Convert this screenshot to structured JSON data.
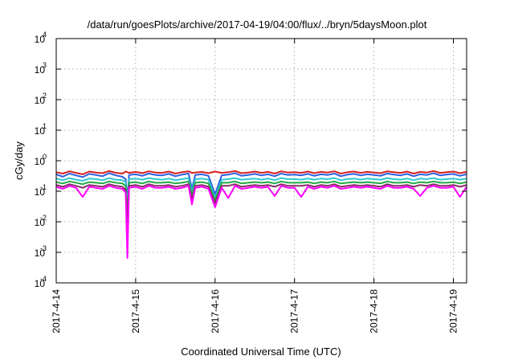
{
  "chart_data": {
    "type": "line",
    "title": "/data/run/goesPlots/archive/2017-04-19/04:00/flux/../bryn/5daysMoon.plot",
    "xlabel": "Coordinated Universal Time (UTC)",
    "ylabel": "cGy/day",
    "x_scale": "time",
    "y_scale": "log",
    "xlim": [
      "2017-04-14T00:00",
      "2017-04-19T04:00"
    ],
    "ylim": [
      0.0001,
      10000
    ],
    "grid": true,
    "legend": "none",
    "x_ticks": [
      {
        "label": "2017-4-14",
        "value": "2017-04-14T00:00"
      },
      {
        "label": "2017-4-15",
        "value": "2017-04-15T00:00"
      },
      {
        "label": "2017-4-16",
        "value": "2017-04-16T00:00"
      },
      {
        "label": "2017-4-17",
        "value": "2017-04-17T00:00"
      },
      {
        "label": "2017-4-18",
        "value": "2017-04-18T00:00"
      },
      {
        "label": "2017-4-19",
        "value": "2017-04-19T00:00"
      }
    ],
    "y_ticks": [
      {
        "base": "10",
        "exp": "-4",
        "value": 0.0001
      },
      {
        "base": "10",
        "exp": "-3",
        "value": 0.001
      },
      {
        "base": "10",
        "exp": "-2",
        "value": 0.01
      },
      {
        "base": "10",
        "exp": "-1",
        "value": 0.1
      },
      {
        "base": "10",
        "exp": "0",
        "value": 1
      },
      {
        "base": "10",
        "exp": "1",
        "value": 10
      },
      {
        "base": "10",
        "exp": "2",
        "value": 100
      },
      {
        "base": "10",
        "exp": "3",
        "value": 1000
      },
      {
        "base": "10",
        "exp": "4",
        "value": 10000
      }
    ],
    "x": [
      "2017-04-14T00:00",
      "2017-04-14T02:00",
      "2017-04-14T04:00",
      "2017-04-14T06:00",
      "2017-04-14T08:00",
      "2017-04-14T10:00",
      "2017-04-14T12:00",
      "2017-04-14T14:00",
      "2017-04-14T16:00",
      "2017-04-14T18:00",
      "2017-04-14T20:00",
      "2017-04-14T21:00",
      "2017-04-14T21:30",
      "2017-04-14T22:00",
      "2017-04-15T00:00",
      "2017-04-15T02:00",
      "2017-04-15T04:00",
      "2017-04-15T06:00",
      "2017-04-15T08:00",
      "2017-04-15T10:00",
      "2017-04-15T12:00",
      "2017-04-15T14:00",
      "2017-04-15T16:00",
      "2017-04-15T17:00",
      "2017-04-15T18:00",
      "2017-04-15T20:00",
      "2017-04-15T22:00",
      "2017-04-16T00:00",
      "2017-04-16T02:00",
      "2017-04-16T04:00",
      "2017-04-16T06:00",
      "2017-04-16T08:00",
      "2017-04-16T10:00",
      "2017-04-16T12:00",
      "2017-04-16T14:00",
      "2017-04-16T16:00",
      "2017-04-16T18:00",
      "2017-04-16T20:00",
      "2017-04-16T22:00",
      "2017-04-17T00:00",
      "2017-04-17T02:00",
      "2017-04-17T04:00",
      "2017-04-17T06:00",
      "2017-04-17T08:00",
      "2017-04-17T10:00",
      "2017-04-17T12:00",
      "2017-04-17T14:00",
      "2017-04-17T16:00",
      "2017-04-17T18:00",
      "2017-04-17T20:00",
      "2017-04-17T22:00",
      "2017-04-18T00:00",
      "2017-04-18T02:00",
      "2017-04-18T04:00",
      "2017-04-18T06:00",
      "2017-04-18T08:00",
      "2017-04-18T10:00",
      "2017-04-18T12:00",
      "2017-04-18T14:00",
      "2017-04-18T16:00",
      "2017-04-18T18:00",
      "2017-04-18T20:00",
      "2017-04-18T22:00",
      "2017-04-19T00:00",
      "2017-04-19T02:00",
      "2017-04-19T04:00"
    ],
    "series": [
      {
        "color": "#d62020",
        "values": [
          0.42,
          0.38,
          0.45,
          0.4,
          0.36,
          0.44,
          0.41,
          0.39,
          0.46,
          0.4,
          0.38,
          0.44,
          0.42,
          0.4,
          0.43,
          0.39,
          0.45,
          0.41,
          0.4,
          0.44,
          0.38,
          0.42,
          0.45,
          0.4,
          0.41,
          0.43,
          0.39,
          0.44,
          0.4,
          0.42,
          0.46,
          0.39,
          0.41,
          0.44,
          0.4,
          0.43,
          0.38,
          0.45,
          0.41,
          0.42,
          0.4,
          0.44,
          0.39,
          0.43,
          0.41,
          0.45,
          0.38,
          0.42,
          0.44,
          0.4,
          0.43,
          0.41,
          0.39,
          0.45,
          0.42,
          0.4,
          0.44,
          0.38,
          0.43,
          0.41,
          0.46,
          0.4,
          0.42,
          0.44,
          0.39,
          0.43
        ]
      },
      {
        "color": "#2d5fe0",
        "values": [
          0.36,
          0.3,
          0.38,
          0.33,
          0.29,
          0.37,
          0.34,
          0.31,
          0.39,
          0.33,
          0.3,
          0.25,
          0.05,
          0.34,
          0.36,
          0.32,
          0.38,
          0.34,
          0.33,
          0.37,
          0.31,
          0.35,
          0.38,
          0.12,
          0.34,
          0.36,
          0.32,
          0.08,
          0.33,
          0.35,
          0.39,
          0.32,
          0.34,
          0.37,
          0.33,
          0.36,
          0.31,
          0.38,
          0.34,
          0.35,
          0.33,
          0.37,
          0.32,
          0.36,
          0.34,
          0.38,
          0.31,
          0.35,
          0.37,
          0.33,
          0.36,
          0.34,
          0.32,
          0.38,
          0.35,
          0.33,
          0.37,
          0.31,
          0.36,
          0.34,
          0.39,
          0.33,
          0.35,
          0.37,
          0.32,
          0.36
        ]
      },
      {
        "color": "#2ec8d2",
        "values": [
          0.26,
          0.23,
          0.27,
          0.24,
          0.22,
          0.26,
          0.25,
          0.23,
          0.27,
          0.24,
          0.23,
          0.2,
          0.03,
          0.25,
          0.26,
          0.24,
          0.27,
          0.25,
          0.24,
          0.26,
          0.23,
          0.25,
          0.27,
          0.09,
          0.25,
          0.26,
          0.24,
          0.06,
          0.24,
          0.25,
          0.27,
          0.24,
          0.25,
          0.26,
          0.24,
          0.26,
          0.23,
          0.27,
          0.25,
          0.25,
          0.24,
          0.26,
          0.24,
          0.26,
          0.25,
          0.27,
          0.23,
          0.25,
          0.26,
          0.24,
          0.26,
          0.25,
          0.24,
          0.27,
          0.25,
          0.24,
          0.26,
          0.23,
          0.26,
          0.25,
          0.27,
          0.24,
          0.25,
          0.26,
          0.24,
          0.26
        ]
      },
      {
        "color": "#22aa44",
        "values": [
          0.2,
          0.18,
          0.21,
          0.19,
          0.17,
          0.2,
          0.19,
          0.18,
          0.21,
          0.19,
          0.18,
          0.15,
          0.02,
          0.19,
          0.2,
          0.18,
          0.21,
          0.19,
          0.19,
          0.2,
          0.18,
          0.19,
          0.21,
          0.07,
          0.19,
          0.2,
          0.18,
          0.05,
          0.19,
          0.19,
          0.21,
          0.18,
          0.19,
          0.2,
          0.19,
          0.2,
          0.18,
          0.21,
          0.19,
          0.19,
          0.19,
          0.2,
          0.18,
          0.2,
          0.19,
          0.21,
          0.18,
          0.19,
          0.2,
          0.19,
          0.2,
          0.19,
          0.18,
          0.21,
          0.19,
          0.19,
          0.2,
          0.18,
          0.2,
          0.19,
          0.21,
          0.19,
          0.19,
          0.2,
          0.18,
          0.2
        ]
      },
      {
        "color": "#8a2a6a",
        "values": [
          0.16,
          0.14,
          0.17,
          0.15,
          0.13,
          0.16,
          0.15,
          0.14,
          0.17,
          0.15,
          0.14,
          0.11,
          0.01,
          0.15,
          0.16,
          0.14,
          0.17,
          0.15,
          0.15,
          0.16,
          0.14,
          0.15,
          0.17,
          0.05,
          0.15,
          0.16,
          0.14,
          0.04,
          0.15,
          0.15,
          0.17,
          0.14,
          0.15,
          0.16,
          0.15,
          0.16,
          0.14,
          0.17,
          0.15,
          0.15,
          0.15,
          0.16,
          0.14,
          0.16,
          0.15,
          0.17,
          0.14,
          0.15,
          0.16,
          0.15,
          0.16,
          0.15,
          0.14,
          0.17,
          0.15,
          0.15,
          0.16,
          0.14,
          0.16,
          0.15,
          0.17,
          0.15,
          0.15,
          0.16,
          0.14,
          0.16
        ]
      },
      {
        "color": "#ff00ff",
        "values": [
          0.14,
          0.12,
          0.15,
          0.13,
          0.065,
          0.14,
          0.13,
          0.12,
          0.15,
          0.13,
          0.12,
          0.09,
          0.00065,
          0.13,
          0.14,
          0.12,
          0.15,
          0.13,
          0.13,
          0.14,
          0.12,
          0.13,
          0.15,
          0.037,
          0.13,
          0.14,
          0.12,
          0.03,
          0.13,
          0.06,
          0.15,
          0.12,
          0.13,
          0.14,
          0.13,
          0.14,
          0.07,
          0.15,
          0.13,
          0.13,
          0.065,
          0.14,
          0.12,
          0.14,
          0.13,
          0.15,
          0.12,
          0.13,
          0.14,
          0.13,
          0.14,
          0.13,
          0.12,
          0.15,
          0.13,
          0.13,
          0.14,
          0.12,
          0.07,
          0.13,
          0.15,
          0.13,
          0.13,
          0.14,
          0.065,
          0.14
        ]
      }
    ]
  }
}
